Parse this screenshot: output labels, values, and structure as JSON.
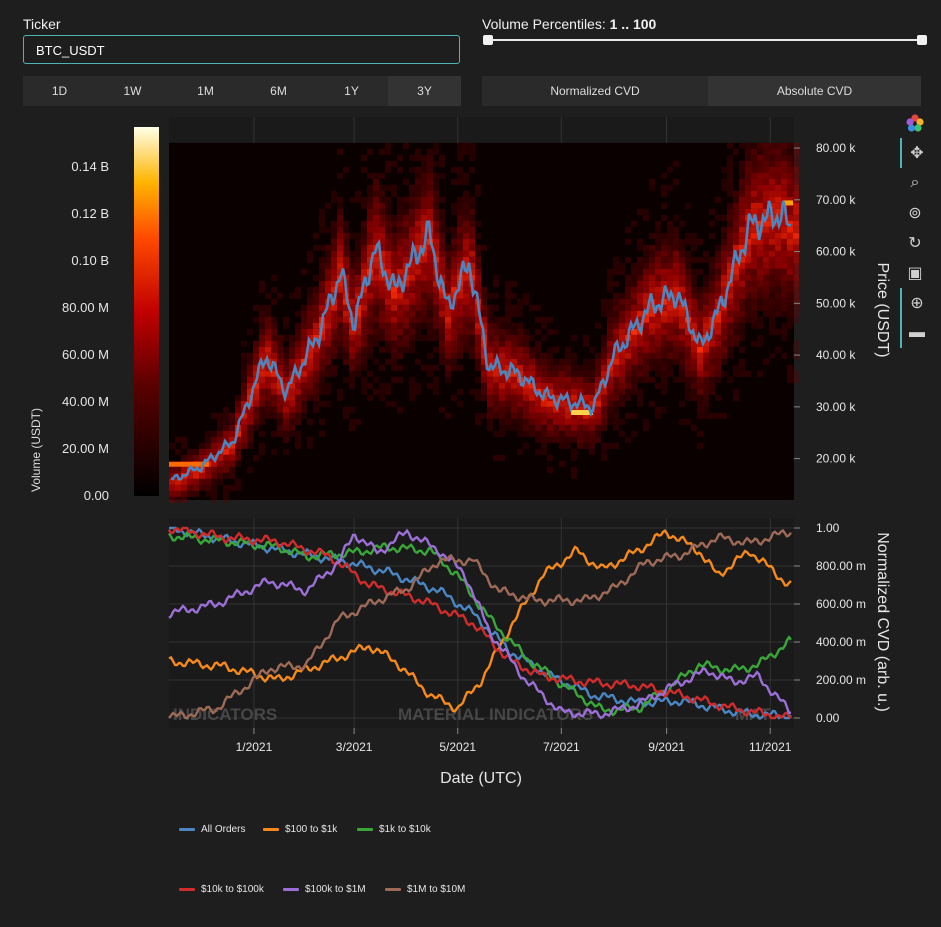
{
  "ticker": {
    "label": "Ticker",
    "value": "BTC_USDT"
  },
  "volume_percentiles": {
    "label": "Volume Percentiles:",
    "range": "1 .. 100",
    "low": 1,
    "high": 100
  },
  "timeframes": [
    "1D",
    "1W",
    "1M",
    "6M",
    "1Y",
    "3Y"
  ],
  "cvd_modes": [
    "Normalized CVD",
    "Absolute CVD"
  ],
  "toolbar_icons": [
    "color-wheel-icon",
    "pan-icon",
    "zoom-icon",
    "zoom-reset-icon",
    "reset-axes-icon",
    "save-image-icon",
    "crosshair-icon",
    "comment-icon"
  ],
  "chart_data": [
    {
      "type": "heatmap",
      "title": "",
      "xlabel": "Date (UTC)",
      "ylabel": "Price (USDT)",
      "colorbar_label": "Volume (USDT)",
      "colorbar_ticks": [
        "0.00",
        "20.00 M",
        "40.00 M",
        "60.00 M",
        "80.00 M",
        "0.10 B",
        "0.12 B",
        "0.14 B"
      ],
      "colorbar_values": [
        0,
        20000000,
        40000000,
        60000000,
        80000000,
        100000000,
        120000000,
        140000000
      ],
      "ylim": [
        12000,
        86000
      ],
      "y_ticks": [
        "20.00 k",
        "30.00 k",
        "40.00 k",
        "50.00 k",
        "60.00 k",
        "70.00 k",
        "80.00 k"
      ],
      "y_tick_values": [
        20000,
        30000,
        40000,
        50000,
        60000,
        70000,
        80000
      ],
      "price_series": [
        [
          "2020-11-15",
          16000
        ],
        [
          "2020-12-01",
          18500
        ],
        [
          "2020-12-20",
          23500
        ],
        [
          "2021-01-08",
          40000
        ],
        [
          "2021-01-20",
          33000
        ],
        [
          "2021-02-08",
          44000
        ],
        [
          "2021-02-21",
          56000
        ],
        [
          "2021-03-01",
          46000
        ],
        [
          "2021-03-13",
          60500
        ],
        [
          "2021-03-25",
          52500
        ],
        [
          "2021-04-14",
          63500
        ],
        [
          "2021-04-25",
          49000
        ],
        [
          "2021-05-08",
          58000
        ],
        [
          "2021-05-19",
          38000
        ],
        [
          "2021-06-05",
          36500
        ],
        [
          "2021-06-22",
          32000
        ],
        [
          "2021-07-20",
          30000
        ],
        [
          "2021-08-01",
          40000
        ],
        [
          "2021-08-23",
          49500
        ],
        [
          "2021-09-07",
          52000
        ],
        [
          "2021-09-21",
          41500
        ],
        [
          "2021-10-01",
          48000
        ],
        [
          "2021-10-20",
          65000
        ],
        [
          "2021-11-08",
          67500
        ],
        [
          "2021-11-12",
          64500
        ]
      ]
    },
    {
      "type": "line",
      "title": "",
      "xlabel": "Date (UTC)",
      "ylabel": "Normalized CVD (arb. u.)",
      "ylim": [
        0,
        1
      ],
      "y_ticks": [
        "0.00",
        "200.00 m",
        "400.00 m",
        "600.00 m",
        "800.00 m",
        "1.00"
      ],
      "y_tick_values": [
        0,
        0.2,
        0.4,
        0.6,
        0.8,
        1.0
      ],
      "x_ticks": [
        "1/2021",
        "3/2021",
        "5/2021",
        "7/2021",
        "9/2021",
        "11/2021"
      ],
      "x_tick_values": [
        "2021-01-01",
        "2021-03-01",
        "2021-05-01",
        "2021-07-01",
        "2021-09-01",
        "2021-11-01"
      ],
      "xlim": [
        "2020-11-12",
        "2021-11-15"
      ],
      "series": [
        {
          "name": "All Orders",
          "color": "#4a86c2",
          "points": [
            [
              "2020-11-12",
              1.0
            ],
            [
              "2020-12-20",
              0.93
            ],
            [
              "2021-01-20",
              0.88
            ],
            [
              "2021-02-20",
              0.83
            ],
            [
              "2021-03-20",
              0.77
            ],
            [
              "2021-04-20",
              0.67
            ],
            [
              "2021-05-10",
              0.55
            ],
            [
              "2021-06-01",
              0.35
            ],
            [
              "2021-06-25",
              0.22
            ],
            [
              "2021-07-20",
              0.12
            ],
            [
              "2021-08-15",
              0.08
            ],
            [
              "2021-09-10",
              0.09
            ],
            [
              "2021-10-01",
              0.05
            ],
            [
              "2021-10-20",
              0.02
            ],
            [
              "2021-11-12",
              0.01
            ]
          ]
        },
        {
          "name": "$100 to $1k",
          "color": "#f5891a",
          "points": [
            [
              "2020-11-12",
              0.3
            ],
            [
              "2020-12-15",
              0.27
            ],
            [
              "2021-01-15",
              0.2
            ],
            [
              "2021-02-15",
              0.3
            ],
            [
              "2021-03-10",
              0.38
            ],
            [
              "2021-03-25",
              0.3
            ],
            [
              "2021-04-15",
              0.12
            ],
            [
              "2021-05-01",
              0.05
            ],
            [
              "2021-05-15",
              0.2
            ],
            [
              "2021-06-01",
              0.48
            ],
            [
              "2021-06-20",
              0.75
            ],
            [
              "2021-07-10",
              0.88
            ],
            [
              "2021-07-25",
              0.78
            ],
            [
              "2021-08-15",
              0.88
            ],
            [
              "2021-09-01",
              0.98
            ],
            [
              "2021-09-20",
              0.88
            ],
            [
              "2021-10-01",
              0.75
            ],
            [
              "2021-10-20",
              0.88
            ],
            [
              "2021-11-12",
              0.7
            ]
          ]
        },
        {
          "name": "$1k to $10k",
          "color": "#3aa63a",
          "points": [
            [
              "2020-11-12",
              0.96
            ],
            [
              "2020-12-15",
              0.93
            ],
            [
              "2021-01-15",
              0.9
            ],
            [
              "2021-02-01",
              0.85
            ],
            [
              "2021-03-01",
              0.87
            ],
            [
              "2021-03-20",
              0.9
            ],
            [
              "2021-04-15",
              0.88
            ],
            [
              "2021-05-01",
              0.75
            ],
            [
              "2021-05-20",
              0.52
            ],
            [
              "2021-06-10",
              0.32
            ],
            [
              "2021-07-01",
              0.18
            ],
            [
              "2021-07-25",
              0.04
            ],
            [
              "2021-08-15",
              0.05
            ],
            [
              "2021-09-01",
              0.15
            ],
            [
              "2021-09-20",
              0.28
            ],
            [
              "2021-10-10",
              0.25
            ],
            [
              "2021-10-25",
              0.28
            ],
            [
              "2021-11-12",
              0.4
            ]
          ]
        },
        {
          "name": "$10k to $100k",
          "color": "#d02c2c",
          "points": [
            [
              "2020-11-12",
              1.0
            ],
            [
              "2020-12-15",
              0.95
            ],
            [
              "2021-01-15",
              0.93
            ],
            [
              "2021-02-15",
              0.85
            ],
            [
              "2021-03-10",
              0.7
            ],
            [
              "2021-04-10",
              0.62
            ],
            [
              "2021-05-10",
              0.5
            ],
            [
              "2021-06-01",
              0.3
            ],
            [
              "2021-06-20",
              0.22
            ],
            [
              "2021-07-15",
              0.19
            ],
            [
              "2021-08-15",
              0.17
            ],
            [
              "2021-09-10",
              0.12
            ],
            [
              "2021-10-10",
              0.05
            ],
            [
              "2021-11-12",
              0.0
            ]
          ]
        },
        {
          "name": "$100k to $1M",
          "color": "#9b6fd6",
          "points": [
            [
              "2020-11-12",
              0.55
            ],
            [
              "2020-12-10",
              0.6
            ],
            [
              "2021-01-10",
              0.72
            ],
            [
              "2021-02-01",
              0.67
            ],
            [
              "2021-02-20",
              0.82
            ],
            [
              "2021-03-01",
              0.97
            ],
            [
              "2021-03-15",
              0.87
            ],
            [
              "2021-04-01",
              0.98
            ],
            [
              "2021-04-20",
              0.88
            ],
            [
              "2021-05-05",
              0.76
            ],
            [
              "2021-05-20",
              0.45
            ],
            [
              "2021-06-10",
              0.2
            ],
            [
              "2021-07-01",
              0.03
            ],
            [
              "2021-07-25",
              0.02
            ],
            [
              "2021-08-15",
              0.07
            ],
            [
              "2021-09-05",
              0.17
            ],
            [
              "2021-09-25",
              0.25
            ],
            [
              "2021-10-10",
              0.19
            ],
            [
              "2021-10-25",
              0.22
            ],
            [
              "2021-11-12",
              0.04
            ]
          ]
        },
        {
          "name": "$1M to $10M",
          "color": "#9e6a58",
          "points": [
            [
              "2020-11-12",
              0.0
            ],
            [
              "2020-12-10",
              0.05
            ],
            [
              "2021-01-10",
              0.26
            ],
            [
              "2021-02-01",
              0.28
            ],
            [
              "2021-02-20",
              0.52
            ],
            [
              "2021-03-15",
              0.62
            ],
            [
              "2021-04-01",
              0.68
            ],
            [
              "2021-04-20",
              0.83
            ],
            [
              "2021-05-10",
              0.83
            ],
            [
              "2021-05-25",
              0.67
            ],
            [
              "2021-06-15",
              0.62
            ],
            [
              "2021-07-15",
              0.62
            ],
            [
              "2021-08-01",
              0.68
            ],
            [
              "2021-08-20",
              0.82
            ],
            [
              "2021-09-10",
              0.86
            ],
            [
              "2021-10-01",
              0.95
            ],
            [
              "2021-10-20",
              0.92
            ],
            [
              "2021-11-12",
              0.98
            ]
          ]
        }
      ],
      "watermark": [
        "INDICATORS",
        "MATERIAL INDICATORS",
        "MAT"
      ]
    }
  ]
}
